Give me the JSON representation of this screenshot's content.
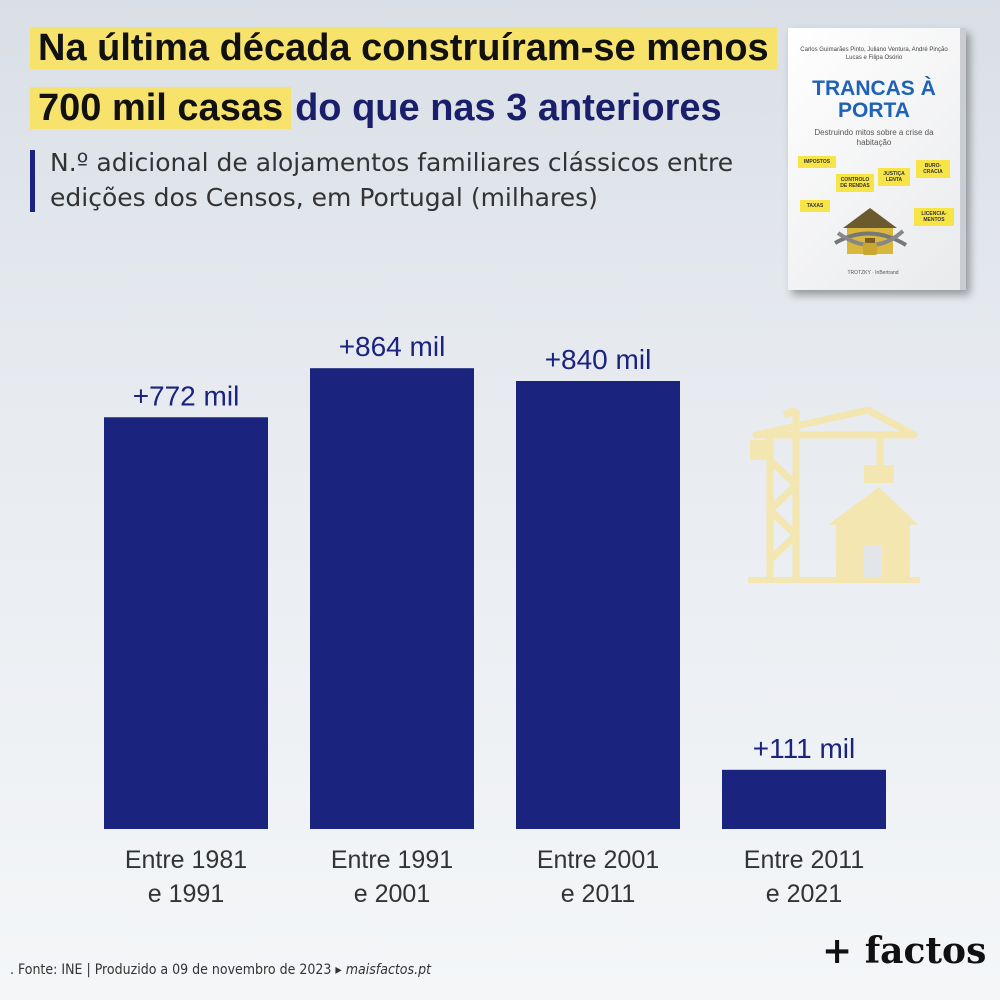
{
  "title": {
    "line1": "Na última década construíram-se menos",
    "line2_highlight": "700 mil casas",
    "line2_rest": "do que nas 3 anteriores"
  },
  "subtitle": "N.º adicional de alojamentos familiares clássicos entre edições dos Censos, em Portugal (milhares)",
  "book": {
    "authors": "Carlos Guimarães Pinto, Juliano Ventura, André Pinção Lucas e Filipa Osório",
    "title": "TRANCAS À PORTA",
    "subtitle": "Destruindo mitos sobre a crise da habitação",
    "notes": [
      "IMPOSTOS",
      "JUSTIÇA LENTA",
      "BURO-CRACIA",
      "CONTROLO DE RENDAS",
      "TAXAS",
      "LICENCIA-MENTOS"
    ],
    "publisher": "TROTZKY · InBertrand"
  },
  "colors": {
    "bar": "#1a237e",
    "highlight": "#f7e36b",
    "crane": "#f3e6b0"
  },
  "icons": {
    "illustration": "crane-house-icon"
  },
  "chart_data": {
    "type": "bar",
    "categories": [
      [
        "Entre 1981",
        "e 1991"
      ],
      [
        "Entre 1991",
        "e 2001"
      ],
      [
        "Entre 2001",
        "e 2011"
      ],
      [
        "Entre 2011",
        "e 2021"
      ]
    ],
    "values": [
      772,
      864,
      840,
      111
    ],
    "value_labels": [
      "+772 mil",
      "+864 mil",
      "+840 mil",
      "+111 mil"
    ],
    "ylim": [
      0,
      900
    ],
    "grid": false
  },
  "footer": {
    "source": ". Fonte: INE | Produzido a 09 de novembro de 2023 ▸",
    "site": "maisfactos.pt"
  },
  "logo": "+ factos"
}
